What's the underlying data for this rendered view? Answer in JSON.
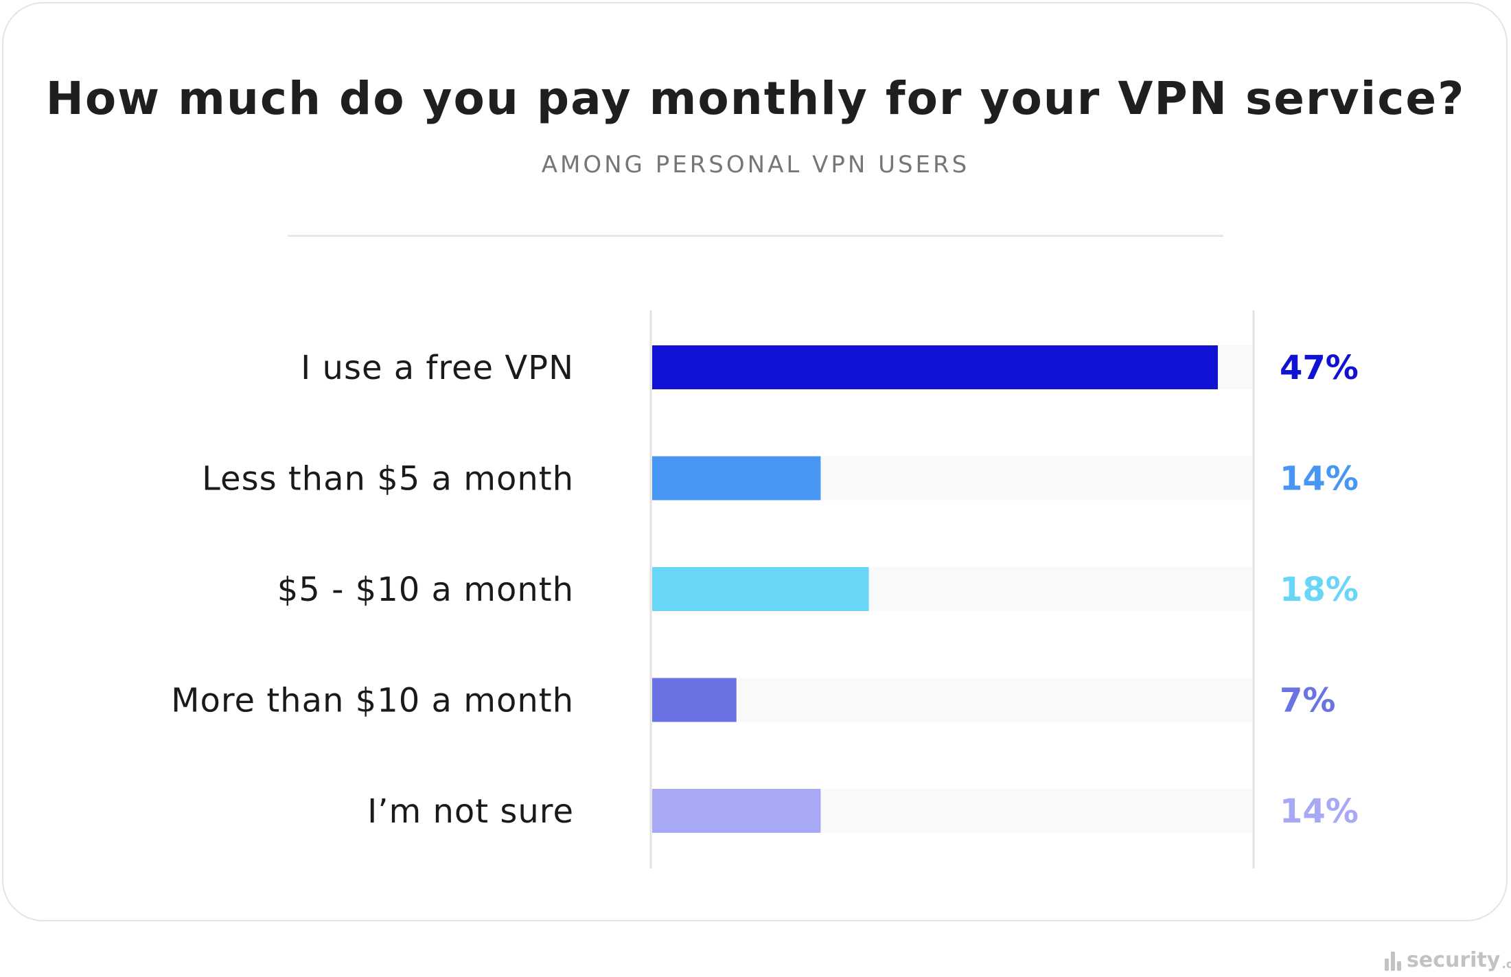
{
  "title": "How much do you pay monthly for your VPN service?",
  "subtitle": "AMONG PERSONAL VPN USERS",
  "watermark": {
    "name": "security",
    "tld": ".org"
  },
  "chart_data": {
    "type": "bar",
    "orientation": "horizontal",
    "title": "How much do you pay monthly for your VPN service?",
    "subtitle": "AMONG PERSONAL VPN USERS",
    "categories": [
      "I use a free VPN",
      "Less than $5 a month",
      "$5 - $10 a month",
      "More than $10 a month",
      "I’m not sure"
    ],
    "values": [
      47,
      14,
      18,
      7,
      14
    ],
    "value_labels": [
      "47%",
      "14%",
      "18%",
      "7%",
      "14%"
    ],
    "colors": [
      "#1212d4",
      "#4896f4",
      "#69d6f8",
      "#6b72e4",
      "#a7a9f5"
    ],
    "track_color": "#f9f9f9",
    "xlim": [
      0,
      50
    ],
    "grid": false,
    "legend": "none"
  }
}
